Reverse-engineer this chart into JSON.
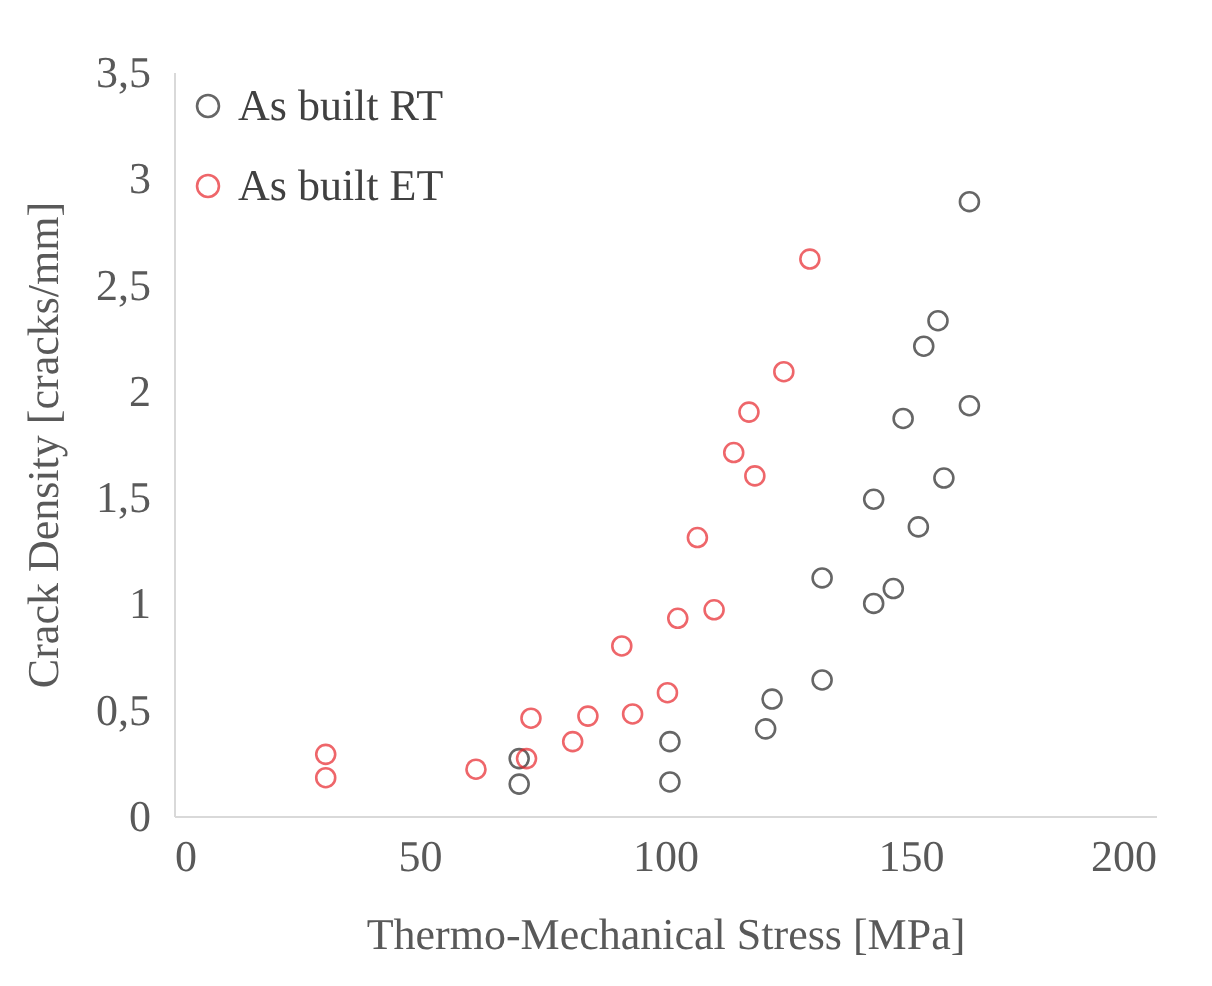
{
  "chart_data": {
    "type": "scatter",
    "xlabel": "Thermo-Mechanical Stress [MPa]",
    "ylabel": "Crack Density [cracks/mm]",
    "xlim": [
      0,
      200
    ],
    "xticks": [
      0,
      50,
      100,
      150,
      200
    ],
    "ylim": [
      0,
      3.5
    ],
    "yticks": [
      0,
      {
        "value": 0.5,
        "label": "0,5"
      },
      1,
      {
        "value": 1.5,
        "label": "1,5"
      },
      2,
      {
        "value": 2.5,
        "label": "2,5"
      },
      3,
      {
        "value": 3.5,
        "label": "3,5"
      }
    ],
    "grid": false,
    "legend": "top left",
    "marker": "circle",
    "series": [
      {
        "name": "As built RT",
        "color": "#262626",
        "x": [
          70.3,
          70.3,
          101,
          101,
          120.5,
          121.8,
          132,
          132,
          142.5,
          146.5,
          142.5,
          151.6,
          156.8,
          148.5,
          162,
          152.7,
          155.6,
          162
        ],
        "values": [
          0.27,
          0.15,
          0.35,
          0.16,
          0.41,
          0.55,
          0.64,
          1.12,
          1.0,
          1.07,
          1.49,
          1.36,
          1.59,
          1.87,
          1.93,
          2.21,
          2.33,
          2.89
        ]
      },
      {
        "name": "As built ET",
        "color": "#e8262c",
        "x": [
          30.9,
          30.9,
          61.5,
          71.8,
          72.7,
          81.2,
          84.3,
          91.2,
          93.4,
          100.5,
          102.6,
          110,
          106.6,
          114,
          118.3,
          117.1,
          124.2,
          129.5
        ],
        "values": [
          0.29,
          0.18,
          0.22,
          0.27,
          0.46,
          0.35,
          0.47,
          0.8,
          0.48,
          0.58,
          0.93,
          0.97,
          1.31,
          1.71,
          1.6,
          1.9,
          2.09,
          2.62
        ]
      }
    ]
  }
}
